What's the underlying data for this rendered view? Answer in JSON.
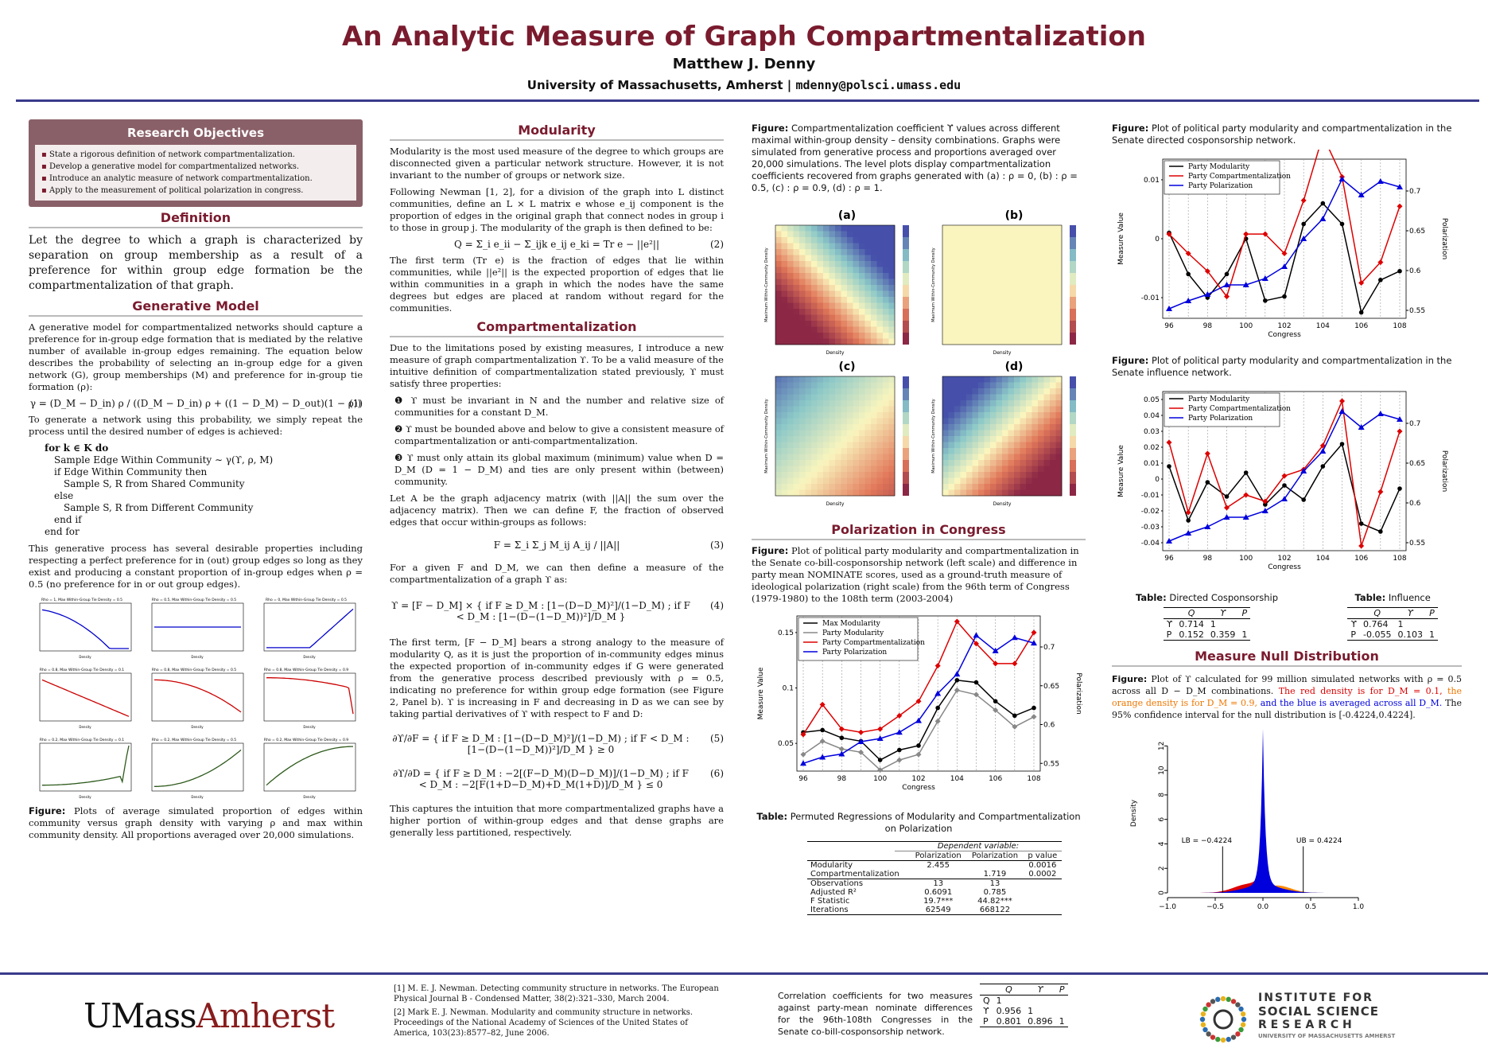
{
  "header": {
    "title": "An Analytic Measure of Graph Compartmentalization",
    "author": "Matthew J. Denny",
    "affiliation": "University of Massachusetts, Amherst | ",
    "email": "mdenny@polsci.umass.edu"
  },
  "objectives": {
    "title": "Research Objectives",
    "items": [
      "State a rigorous definition of network compartmentalization.",
      "Develop a generative model for compartmentalized networks.",
      "Introduce an analytic measure of network compartmentalization.",
      "Apply to the measurement of political polarization in congress."
    ]
  },
  "definition": {
    "heading": "Definition",
    "text": "Let the degree to which a graph is characterized by separation on group membership as a result of a preference for within group edge formation be the compartmentalization of that graph."
  },
  "generative": {
    "heading": "Generative Model",
    "p1": "A generative model for compartmentalized networks should capture a preference for in-group edge formation that is mediated by the relative number of available in-group edges remaining. The equation below describes the probability of selecting an in-group edge for a given network (G), group memberships (M) and preference for in-group tie formation (ρ):",
    "eq": "γ = (D_M − D_in) ρ / ((D_M − D_in) ρ + ((1 − D_M) − D_out)(1 − ρ))",
    "eqnum": "(1)",
    "p2": "To generate a network using this probability, we simply repeat the process until the desired number of edges is achieved:",
    "algo": [
      "for k ∈ K do",
      "Sample Edge Within Community ∼ γ(ϒ, ρ, M)",
      "if Edge Within Community then",
      "Sample S, R from Shared Community",
      "else",
      "Sample S, R from Different Community",
      "end if",
      "end for"
    ],
    "p3": "This generative process has several desirable properties including respecting a perfect preference for in (out) group edges so long as they exist and producing a constant proportion of in-group edges when ρ = 0.5 (no preference for in or out group edges).",
    "panel_titles": [
      "Rho = 1, Max Within-Group Tie Density = 0.5",
      "Rho = 0.5, Max Within-Group Tie Density = 0.5",
      "Rho = 0, Max Within-Group Tie Density = 0.5",
      "Rho = 0.8, Max Within-Group Tie Density = 0.1",
      "Rho = 0.8, Max Within-Group Tie Density = 0.5",
      "Rho = 0.8, Max Within-Group Tie Density = 0.9",
      "Rho = 0.2, Max Within-Group Tie Density = 0.1",
      "Rho = 0.2, Max Within-Group Tie Density = 0.5",
      "Rho = 0.2, Max Within-Group Tie Density = 0.9"
    ],
    "panel_colors": [
      "#0000cc",
      "#0000cc",
      "#0000cc",
      "#cc0000",
      "#cc0000",
      "#cc0000",
      "#2d5a1b",
      "#2d5a1b",
      "#2d5a1b"
    ],
    "caption_label": "Figure:",
    "caption": "Plots of average simulated proportion of edges within community versus graph density with varying ρ and max within community density. All proportions averaged over 20,000 simulations."
  },
  "modularity": {
    "heading": "Modularity",
    "p1": "Modularity is the most used measure of the degree to which groups are disconnected given a particular network structure. However, it is not invariant to the number of groups or network size.",
    "p2": "Following Newman [1, 2], for a division of the graph into L distinct communities, define an L × L matrix e whose e_ij component is the proportion of edges in the original graph that connect nodes in group i to those in group j. The modularity of the graph is then defined to be:",
    "eq": "Q = Σ_i e_ii − Σ_ijk e_ij e_ki = Tr e − ||e²||",
    "eqnum": "(2)",
    "p3": "The first term (Tr e) is the fraction of edges that lie within communities, while ||e²|| is the expected proportion of edges that lie within communities in a graph in which the nodes have the same degrees but edges are placed at random without regard for the communities."
  },
  "compart": {
    "heading": "Compartmentalization",
    "p1": "Due to the limitations posed by existing measures, I introduce a new measure of graph compartmentalization ϒ. To be a valid measure of the intuitive definition of compartmentalization stated previously, ϒ must satisfy three properties:",
    "props": [
      "❶ ϒ must be invariant in N and the number and relative size of communities for a constant D_M.",
      "❷ ϒ must be bounded above and below to give a consistent measure of compartmentalization or anti-compartmentalization.",
      "❸ ϒ must only attain its global maximum (minimum) value when D = D_M (D = 1 − D_M) and ties are only present within (between) community."
    ],
    "p2": "Let A be the graph adjacency matrix (with ||A|| the sum over the adjacency matrix). Then we can define F, the fraction of observed edges that occur within-groups as follows:",
    "eq3": "F = Σ_i Σ_j M_ij A_ij / ||A||",
    "eqnum3": "(3)",
    "p3": "For a given F and D_M, we can then define a measure of the compartmentalization of a graph ϒ as:",
    "eq4": "ϒ = [F − D_M] × { if F ≥ D_M : [1−(D−D_M)²]/(1−D_M) ; if F < D_M : [1−(D−(1−D_M))²]/D_M }",
    "eqnum4": "(4)",
    "p4": "The first term, [F − D_M] bears a strong analogy to the measure of modularity Q, as it is just the proportion of in-community edges minus the expected proportion of in-community edges if G were generated from the generative process described previously with ρ = 0.5, indicating no preference for within group edge formation (see Figure 2, Panel b). ϒ is increasing in F and decreasing in D as we can see by taking partial derivatives of ϒ with respect to F and D:",
    "eq5": "∂ϒ/∂F = { if F ≥ D_M : [1−(D−D_M)²]/(1−D_M) ; if F < D_M : [1−(D−(1−D_M))²]/D_M } ≥ 0",
    "eqnum5": "(5)",
    "eq6": "∂ϒ/∂D = { if F ≥ D_M : −2[(F−D_M)(D−D_M)]/(1−D_M) ; if F < D_M : −2[F(1+D−D_M)+D_M(1+D)]/D_M } ≤ 0",
    "eqnum6": "(6)",
    "p5": "This captures the intuition that more compartmentalized graphs have a higher portion of within-group edges and that dense graphs are generally less partitioned, respectively."
  },
  "levelplot": {
    "caption_label": "Figure:",
    "caption": "Compartmentalization coefficient ϒ values across different maximal within-group density – density combinations. Graphs were simulated from generative process and proportions averaged over 20,000 simulations. The level plots display compartmentalization coefficients recovered from graphs generated with (a) : ρ = 0, (b) : ρ = 0.5, (c) : ρ = 0.9, (d) : ρ = 1.",
    "panels": [
      "(a)",
      "(b)",
      "(c)",
      "(d)"
    ],
    "ylabel": "Maximum Within-Community Density",
    "xlabel": "Density"
  },
  "polarization": {
    "heading": "Polarization in Congress",
    "caption_label": "Figure:",
    "caption": "Plot of political party modularity and compartmentalization in the Senate co-bill-cosponsorship network (left scale) and difference in party mean NOMINATE scores, used as a ground-truth measure of ideological polarization (right scale) from the 96th term of Congress (1979-1980) to the 108th term (2003-2004)",
    "table_caption_label": "Table:",
    "table_caption": "Permuted Regressions of Modularity and Compartmentalization on Polarization",
    "table_dep": "Dependent variable:",
    "table_cols": [
      "",
      "Polarization",
      "Polarization",
      "p value"
    ],
    "table_rows": [
      [
        "Modularity",
        "2.455",
        "",
        "0.0016"
      ],
      [
        "Compartmentalization",
        "",
        "1.719",
        "0.0002"
      ],
      [
        "Observations",
        "13",
        "13",
        ""
      ],
      [
        "Adjusted R²",
        "0.6091",
        "0.785",
        ""
      ],
      [
        "F Statistic",
        "19.7***",
        "44.82***",
        ""
      ],
      [
        "Iterations",
        "62549",
        "668122",
        ""
      ]
    ]
  },
  "chart_data": [
    {
      "type": "line",
      "title": "",
      "xlabel": "Congress",
      "ylabel": "Measure Value",
      "y2label": "Polarization",
      "x": [
        96,
        97,
        98,
        99,
        100,
        101,
        102,
        103,
        104,
        105,
        106,
        107,
        108
      ],
      "ylim": [
        0.025,
        0.165
      ],
      "y2lim": [
        0.54,
        0.74
      ],
      "legend_position": "top-left",
      "series": [
        {
          "name": "Max Modularity",
          "axis": "left",
          "color": "#000000",
          "values": [
            0.06,
            0.062,
            0.055,
            0.052,
            0.035,
            0.044,
            0.048,
            0.082,
            0.107,
            0.105,
            0.088,
            0.075,
            0.082
          ]
        },
        {
          "name": "Party Modularity",
          "axis": "left",
          "color": "#888888",
          "values": [
            0.04,
            0.052,
            0.045,
            0.042,
            0.026,
            0.035,
            0.04,
            0.07,
            0.098,
            0.094,
            0.08,
            0.065,
            0.074
          ]
        },
        {
          "name": "Party Compartmentalization",
          "axis": "left",
          "color": "#dd0000",
          "values": [
            0.058,
            0.085,
            0.063,
            0.06,
            0.063,
            0.075,
            0.088,
            0.12,
            0.16,
            0.14,
            0.122,
            0.122,
            0.15
          ]
        },
        {
          "name": "Party Polarization",
          "axis": "right",
          "color": "#0000dd",
          "values": [
            0.55,
            0.558,
            0.562,
            0.578,
            0.582,
            0.59,
            0.605,
            0.64,
            0.665,
            0.715,
            0.695,
            0.712,
            0.705
          ]
        }
      ]
    },
    {
      "type": "line",
      "title": "",
      "xlabel": "Congress",
      "ylabel": "Measure Value",
      "y2label": "Polarization",
      "x": [
        96,
        97,
        98,
        99,
        100,
        101,
        102,
        103,
        104,
        105,
        106,
        107,
        108
      ],
      "ylim": [
        -0.0135,
        0.0135
      ],
      "y2lim": [
        0.54,
        0.74
      ],
      "legend_position": "top-left",
      "series": [
        {
          "name": "Party Modularity",
          "axis": "left",
          "color": "#000000",
          "values": [
            0.001,
            -0.006,
            -0.01,
            -0.006,
            0.0,
            -0.0105,
            -0.0098,
            0.0025,
            0.006,
            0.0025,
            -0.0125,
            -0.007,
            -0.0055
          ]
        },
        {
          "name": "Party Compartmentalization",
          "axis": "left",
          "color": "#dd0000",
          "values": [
            0.0008,
            -0.0025,
            -0.0055,
            -0.0098,
            0.0008,
            0.0008,
            -0.0025,
            0.0065,
            0.0175,
            0.0105,
            -0.0075,
            -0.004,
            0.0055
          ]
        },
        {
          "name": "Party Polarization",
          "axis": "right",
          "color": "#0000dd",
          "values": [
            0.552,
            0.562,
            0.57,
            0.582,
            0.582,
            0.59,
            0.605,
            0.64,
            0.665,
            0.715,
            0.695,
            0.712,
            0.705
          ]
        }
      ]
    },
    {
      "type": "line",
      "title": "",
      "xlabel": "Congress",
      "ylabel": "Measure Value",
      "y2label": "Polarization",
      "x": [
        96,
        97,
        98,
        99,
        100,
        101,
        102,
        103,
        104,
        105,
        106,
        107,
        108
      ],
      "ylim": [
        -0.045,
        0.055
      ],
      "y2lim": [
        0.54,
        0.74
      ],
      "legend_position": "top-left",
      "series": [
        {
          "name": "Party Modularity",
          "axis": "left",
          "color": "#000000",
          "values": [
            0.008,
            -0.026,
            -0.002,
            -0.011,
            0.004,
            -0.016,
            -0.004,
            -0.013,
            0.008,
            0.022,
            -0.028,
            -0.033,
            -0.006
          ]
        },
        {
          "name": "Party Compartmentalization",
          "axis": "left",
          "color": "#dd0000",
          "values": [
            0.023,
            -0.021,
            0.016,
            -0.018,
            -0.01,
            -0.014,
            0.002,
            0.006,
            0.021,
            0.049,
            -0.042,
            -0.008,
            0.03
          ]
        },
        {
          "name": "Party Polarization",
          "axis": "right",
          "color": "#0000dd",
          "values": [
            0.552,
            0.562,
            0.57,
            0.582,
            0.582,
            0.59,
            0.605,
            0.64,
            0.665,
            0.715,
            0.695,
            0.712,
            0.705
          ]
        }
      ]
    },
    {
      "type": "area",
      "title": "",
      "xlabel": "",
      "ylabel": "Density",
      "xlim": [
        -1.0,
        1.0
      ],
      "ylim": [
        0,
        13
      ],
      "x_ticks": [
        "−1.0",
        "−0.5",
        "0.0",
        "0.5",
        "1.0"
      ],
      "y_ticks": [
        "0",
        "2",
        "4",
        "6",
        "8",
        "10",
        "12"
      ],
      "annotations": [
        "LB = −0.4224",
        "UB = 0.4224"
      ],
      "bounds": [
        -0.4224,
        0.4224
      ],
      "series": [
        {
          "name": "",
          "color": "#ff8800",
          "values": []
        },
        {
          "name": "",
          "color": "#dd0000",
          "values": []
        },
        {
          "name": "",
          "color": "#0000dd",
          "values": []
        }
      ]
    }
  ],
  "right": {
    "fig1_label": "Figure:",
    "fig1": "Plot of political party modularity and compartmentalization in the Senate directed cosponsorship network.",
    "fig2_label": "Figure:",
    "fig2": "Plot of political party modularity and compartmentalization in the Senate influence network.",
    "t1_label": "Table:",
    "t1_title": "Directed Cosponsorship",
    "t2_label": "Table:",
    "t2_title": "Influence",
    "t1": [
      [
        "",
        "Q",
        "ϒ",
        "P"
      ],
      [
        "ϒ",
        "0.714",
        "1",
        ""
      ],
      [
        "P",
        "0.152",
        "0.359",
        "1"
      ]
    ],
    "t2": [
      [
        "",
        "Q",
        "ϒ",
        "P"
      ],
      [
        "ϒ",
        "0.764",
        "1",
        ""
      ],
      [
        "P",
        "-0.055",
        "0.103",
        "1"
      ]
    ],
    "null_heading": "Measure Null Distribution",
    "null_label": "Figure:",
    "null_a": "Plot of ϒ calculated for 99 million simulated networks with ρ = 0.5 across all D − D_M combinations.",
    "null_red": "The red density is for D_M = 0.1,",
    "null_orange": "the orange density is for D_M = 0.9,",
    "null_blue": "and the blue is averaged across all D_M.",
    "null_b": "The 95% confidence interval for the null distribution is [-0.4224,0.4224]."
  },
  "footer": {
    "logo_left_a": "UMass",
    "logo_left_b": "Amherst",
    "refs": [
      "[1] M. E. J. Newman. Detecting community structure in networks. The European Physical Journal B - Condensed Matter, 38(2):321–330, March 2004.",
      "[2] Mark E. J. Newman. Modularity and community structure in networks. Proceedings of the National Academy of Sciences of the United States of America, 103(23):8577–82, June 2006."
    ],
    "corr_text": "Correlation coefficients for two measures against party-mean nominate differences for the 96th-108th Congresses in the Senate co-bill-cosponsorship network.",
    "corr_table": [
      [
        "",
        "Q",
        "ϒ",
        "P"
      ],
      [
        "Q",
        "1",
        "",
        ""
      ],
      [
        "ϒ",
        "0.956",
        "1",
        ""
      ],
      [
        "P",
        "0.801",
        "0.896",
        "1"
      ]
    ],
    "isr_1": "INSTITUTE FOR",
    "isr_2": "SOCIAL SCIENCE",
    "isr_3": "R E S E A R C H",
    "isr_4": "UNIVERSITY OF MASSACHUSETTS AMHERST"
  }
}
